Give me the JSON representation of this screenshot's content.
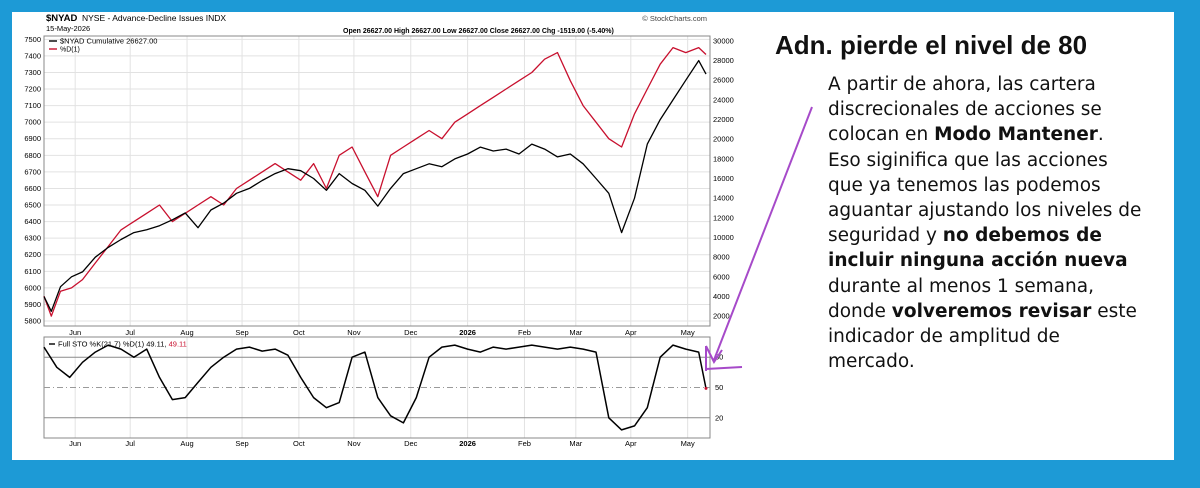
{
  "header": {
    "symbol": "$NYAD",
    "description": "NYSE - Advance-Decline Issues INDX",
    "date": "15-May-2026",
    "ohlc": "Open 26627.00  High 26627.00  Low 26627.00  Close 26627.00  Chg -1519.00 (-5.40%)",
    "source": "© StockCharts.com"
  },
  "annotation": {
    "headline": "Adn. pierde el nivel de 80",
    "lines": [
      {
        "parts": [
          {
            "t": "A partir de ahora, las cartera",
            "b": false
          }
        ]
      },
      {
        "parts": [
          {
            "t": "discrecionales de acciones se",
            "b": false
          }
        ]
      },
      {
        "parts": [
          {
            "t": "colocan en ",
            "b": false
          },
          {
            "t": "Modo Mantener",
            "b": true
          },
          {
            "t": ".",
            "b": false
          }
        ]
      },
      {
        "parts": [
          {
            "t": "Eso siginifica que las acciones",
            "b": false
          }
        ]
      },
      {
        "parts": [
          {
            "t": "que ya tenemos las podemos",
            "b": false
          }
        ]
      },
      {
        "parts": [
          {
            "t": "aguantar ajustando los niveles de",
            "b": false
          }
        ]
      },
      {
        "parts": [
          {
            "t": "seguridad y ",
            "b": false
          },
          {
            "t": "no debemos de",
            "b": true
          }
        ]
      },
      {
        "parts": [
          {
            "t": "incluir ninguna acción nueva",
            "b": true
          }
        ]
      },
      {
        "parts": [
          {
            "t": "durante al menos 1 semana,",
            "b": false
          }
        ]
      },
      {
        "parts": [
          {
            "t": "donde ",
            "b": false
          },
          {
            "t": "volveremos revisar",
            "b": true
          },
          {
            "t": " este",
            "b": false
          }
        ]
      },
      {
        "parts": [
          {
            "t": "indicador de amplitud de",
            "b": false
          }
        ]
      },
      {
        "parts": [
          {
            "t": "mercado.",
            "b": false
          }
        ]
      }
    ]
  },
  "colors": {
    "background": "#1d9ad6",
    "spx_line": "#c8102e",
    "nyad_line": "#000000",
    "arrow": "#a64ac9",
    "grid": "#e2e2e2"
  },
  "chart_data": [
    {
      "type": "line",
      "title": "$NYAD NYSE - Advance-Decline Issues INDX",
      "x_labels": [
        "Jun",
        "Jul",
        "Aug",
        "Sep",
        "Oct",
        "Nov",
        "Dec",
        "2026",
        "Feb",
        "Mar",
        "Apr",
        "May"
      ],
      "left_axis": {
        "ticks": [
          5800,
          5900,
          6000,
          6100,
          6200,
          6300,
          6400,
          6500,
          6600,
          6700,
          6800,
          6900,
          7000,
          7100,
          7200,
          7300,
          7400,
          7500
        ],
        "range": [
          5770,
          7520
        ]
      },
      "right_axis": {
        "ticks": [
          2000,
          4000,
          6000,
          8000,
          10000,
          12000,
          14000,
          16000,
          18000,
          20000,
          22000,
          24000,
          26000,
          28000,
          30000
        ],
        "range": [
          1000,
          30500
        ]
      },
      "grid": true,
      "legend_position": "top-left",
      "series": [
        {
          "name": "$NYAD Cumulative 26627.00",
          "axis": "right",
          "color": "#000000",
          "x": [
            "2025-05-19",
            "2025-05-23",
            "2025-05-28",
            "2025-06-03",
            "2025-06-09",
            "2025-06-16",
            "2025-06-23",
            "2025-06-30",
            "2025-07-07",
            "2025-07-14",
            "2025-07-21",
            "2025-07-28",
            "2025-08-04",
            "2025-08-11",
            "2025-08-18",
            "2025-08-25",
            "2025-09-01",
            "2025-09-08",
            "2025-09-15",
            "2025-09-22",
            "2025-09-29",
            "2025-10-06",
            "2025-10-13",
            "2025-10-20",
            "2025-10-27",
            "2025-11-03",
            "2025-11-10",
            "2025-11-17",
            "2025-11-24",
            "2025-12-01",
            "2025-12-08",
            "2025-12-15",
            "2025-12-22",
            "2025-12-29",
            "2026-01-05",
            "2026-01-12",
            "2026-01-19",
            "2026-01-26",
            "2026-02-02",
            "2026-02-09",
            "2026-02-16",
            "2026-02-23",
            "2026-03-02",
            "2026-03-09",
            "2026-03-16",
            "2026-03-23",
            "2026-03-30",
            "2026-04-06",
            "2026-04-13",
            "2026-04-20",
            "2026-04-27",
            "2026-05-04",
            "2026-05-11",
            "2026-05-15"
          ],
          "y": [
            4000,
            2500,
            5000,
            6000,
            6500,
            8000,
            9000,
            9800,
            10500,
            10800,
            11200,
            11800,
            12500,
            11000,
            12800,
            13500,
            14500,
            15000,
            15800,
            16500,
            17000,
            16800,
            16000,
            14800,
            16500,
            15500,
            14800,
            13200,
            15000,
            16500,
            17000,
            17500,
            17200,
            18000,
            18500,
            19200,
            18800,
            19000,
            18500,
            19500,
            19000,
            18200,
            18500,
            17500,
            16000,
            14500,
            10500,
            14000,
            19500,
            22000,
            24000,
            26000,
            28000,
            26627
          ]
        },
        {
          "name": "$SPX 7408.50",
          "axis": "left",
          "color": "#c8102e",
          "x": [
            "2025-05-19",
            "2025-05-23",
            "2025-05-28",
            "2025-06-03",
            "2025-06-09",
            "2025-06-16",
            "2025-06-23",
            "2025-06-30",
            "2025-07-07",
            "2025-07-14",
            "2025-07-21",
            "2025-07-28",
            "2025-08-04",
            "2025-08-11",
            "2025-08-18",
            "2025-08-25",
            "2025-09-01",
            "2025-09-08",
            "2025-09-15",
            "2025-09-22",
            "2025-09-29",
            "2025-10-06",
            "2025-10-13",
            "2025-10-20",
            "2025-10-27",
            "2025-11-03",
            "2025-11-10",
            "2025-11-17",
            "2025-11-24",
            "2025-12-01",
            "2025-12-08",
            "2025-12-15",
            "2025-12-22",
            "2025-12-29",
            "2026-01-05",
            "2026-01-12",
            "2026-01-19",
            "2026-01-26",
            "2026-02-02",
            "2026-02-09",
            "2026-02-16",
            "2026-02-23",
            "2026-03-02",
            "2026-03-09",
            "2026-03-16",
            "2026-03-23",
            "2026-03-30",
            "2026-04-06",
            "2026-04-13",
            "2026-04-20",
            "2026-04-27",
            "2026-05-04",
            "2026-05-11",
            "2026-05-15"
          ],
          "y": [
            5950,
            5830,
            5980,
            6000,
            6050,
            6150,
            6250,
            6350,
            6400,
            6450,
            6500,
            6400,
            6450,
            6500,
            6550,
            6500,
            6600,
            6650,
            6700,
            6750,
            6700,
            6650,
            6750,
            6600,
            6800,
            6850,
            6700,
            6550,
            6800,
            6850,
            6900,
            6950,
            6900,
            7000,
            7050,
            7100,
            7150,
            7200,
            7250,
            7300,
            7380,
            7420,
            7250,
            7100,
            7000,
            6900,
            6850,
            7050,
            7200,
            7350,
            7450,
            7420,
            7450,
            7408.5
          ]
        }
      ]
    },
    {
      "type": "line",
      "title": "Full STO %K(21,7) %D(1) 49.11, 49.11",
      "x_labels": [
        "Jun",
        "Jul",
        "Aug",
        "Sep",
        "Oct",
        "Nov",
        "Dec",
        "2026",
        "Feb",
        "Mar",
        "Apr",
        "May"
      ],
      "y_axis": {
        "ticks": [
          20,
          50,
          80
        ],
        "range": [
          0,
          100
        ]
      },
      "reference_lines": [
        20,
        50,
        80
      ],
      "series": [
        {
          "name": "%K(21,7)",
          "color": "#000000",
          "x": [
            "2025-05-19",
            "2025-05-26",
            "2025-06-02",
            "2025-06-09",
            "2025-06-16",
            "2025-06-23",
            "2025-06-30",
            "2025-07-07",
            "2025-07-14",
            "2025-07-21",
            "2025-07-28",
            "2025-08-04",
            "2025-08-11",
            "2025-08-18",
            "2025-08-25",
            "2025-09-01",
            "2025-09-08",
            "2025-09-15",
            "2025-09-22",
            "2025-09-29",
            "2025-10-06",
            "2025-10-13",
            "2025-10-20",
            "2025-10-27",
            "2025-11-03",
            "2025-11-10",
            "2025-11-17",
            "2025-11-24",
            "2025-12-01",
            "2025-12-08",
            "2025-12-15",
            "2025-12-22",
            "2025-12-29",
            "2026-01-05",
            "2026-01-12",
            "2026-01-19",
            "2026-01-26",
            "2026-02-02",
            "2026-02-09",
            "2026-02-16",
            "2026-02-23",
            "2026-03-02",
            "2026-03-09",
            "2026-03-16",
            "2026-03-23",
            "2026-03-30",
            "2026-04-06",
            "2026-04-13",
            "2026-04-20",
            "2026-04-27",
            "2026-05-04",
            "2026-05-11",
            "2026-05-15"
          ],
          "y": [
            90,
            70,
            60,
            75,
            85,
            92,
            88,
            80,
            88,
            60,
            38,
            40,
            55,
            70,
            80,
            88,
            90,
            86,
            88,
            82,
            60,
            40,
            30,
            35,
            80,
            85,
            40,
            22,
            15,
            40,
            80,
            90,
            92,
            88,
            85,
            90,
            88,
            90,
            92,
            90,
            88,
            90,
            88,
            85,
            20,
            8,
            12,
            30,
            80,
            92,
            88,
            85,
            49.11
          ]
        },
        {
          "name": "%D(1)",
          "color": "#c8102e",
          "x": [
            "2026-05-15"
          ],
          "y": [
            49.11
          ]
        }
      ]
    }
  ]
}
